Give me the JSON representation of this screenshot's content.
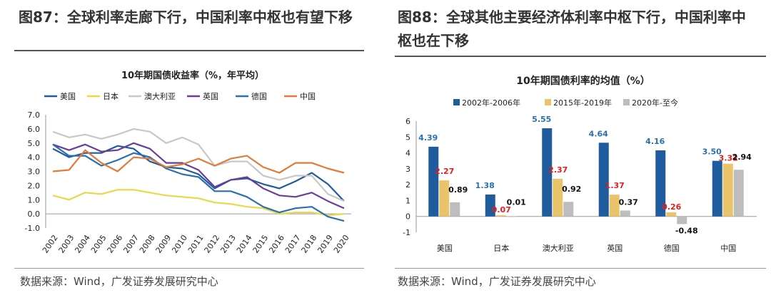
{
  "left": {
    "fig_title": "图87：全球利率走廊下行，中国利率中枢也有望下移",
    "source": "数据来源：Wind，广发证券发展研究中心"
  },
  "right": {
    "fig_title_line1": "图88：全球其他主要经济体利率中枢下行，中国利率中",
    "fig_title_line2": "枢也在下移",
    "source": "数据来源：Wind，广发证券发展研究中心"
  },
  "chart_data": [
    {
      "type": "line",
      "title": "10年期国债收益率（%，年平均）",
      "x": [
        "2002",
        "2003",
        "2004",
        "2005",
        "2006",
        "2007",
        "2008",
        "2009",
        "2010",
        "2011",
        "2012",
        "2013",
        "2014",
        "2015",
        "2016",
        "2017",
        "2018",
        "2019",
        "2020"
      ],
      "ylim": [
        -1.0,
        7.0
      ],
      "yticks": [
        "7.0",
        "6.0",
        "5.0",
        "4.0",
        "3.0",
        "2.0",
        "1.0",
        "0.0",
        "-1.0"
      ],
      "legend_position": "top",
      "series": [
        {
          "name": "美国",
          "color": "#1f5c9e",
          "values": [
            4.6,
            4.0,
            4.3,
            4.3,
            4.8,
            4.6,
            3.7,
            3.3,
            3.2,
            2.8,
            1.8,
            2.4,
            2.5,
            2.1,
            1.8,
            2.3,
            2.9,
            2.1,
            0.9
          ]
        },
        {
          "name": "日本",
          "color": "#e8d84a",
          "values": [
            1.3,
            1.0,
            1.5,
            1.4,
            1.7,
            1.7,
            1.5,
            1.3,
            1.2,
            1.1,
            0.8,
            0.7,
            0.5,
            0.4,
            0.0,
            0.1,
            0.1,
            -0.1,
            0.0
          ]
        },
        {
          "name": "澳大利亚",
          "color": "#c8c8c8",
          "values": [
            5.8,
            5.4,
            5.6,
            5.3,
            5.6,
            6.0,
            5.8,
            5.0,
            5.4,
            4.9,
            3.4,
            3.7,
            3.7,
            2.7,
            2.4,
            2.7,
            2.7,
            1.4,
            0.9
          ]
        },
        {
          "name": "英国",
          "color": "#6a3d9a",
          "values": [
            4.9,
            4.5,
            4.9,
            4.4,
            4.5,
            5.0,
            4.6,
            3.6,
            3.6,
            3.1,
            1.9,
            2.4,
            2.6,
            1.8,
            1.3,
            1.2,
            1.5,
            0.9,
            0.4
          ]
        },
        {
          "name": "德国",
          "color": "#2a6fb0",
          "values": [
            4.9,
            4.1,
            4.1,
            3.4,
            3.8,
            4.3,
            4.0,
            3.2,
            2.8,
            2.6,
            1.6,
            1.6,
            1.2,
            0.5,
            0.1,
            0.4,
            0.5,
            -0.2,
            -0.5
          ]
        },
        {
          "name": "中国",
          "color": "#e07b39",
          "values": [
            3.0,
            3.1,
            4.5,
            3.6,
            3.0,
            4.0,
            3.9,
            3.3,
            3.5,
            3.9,
            3.4,
            3.9,
            4.1,
            3.3,
            2.9,
            3.6,
            3.6,
            3.2,
            2.9
          ]
        }
      ]
    },
    {
      "type": "bar",
      "title": "10年期国债利率的均值（%）",
      "categories": [
        "美国",
        "日本",
        "澳大利亚",
        "英国",
        "德国",
        "中国"
      ],
      "ylim": [
        -1,
        6
      ],
      "yticks": [
        "6",
        "5",
        "4",
        "3",
        "2",
        "1",
        "0",
        "-1"
      ],
      "legend_position": "top",
      "series": [
        {
          "name": "2002年-2006年",
          "color": "#1f5c9e",
          "label_color": "#2a6fb0",
          "values": [
            4.39,
            1.38,
            5.55,
            4.64,
            4.16,
            3.5
          ],
          "labels": [
            "4.39",
            "1.38",
            "5.55",
            "4.64",
            "4.16",
            "3.50"
          ]
        },
        {
          "name": "2015年-2019年",
          "color": "#e9c46a",
          "label_color": "#e02020",
          "values": [
            2.27,
            0.07,
            2.37,
            1.37,
            0.26,
            3.32
          ],
          "labels": [
            "2.27",
            "0.07",
            "2.37",
            "1.37",
            "0.26",
            "3.32"
          ]
        },
        {
          "name": "2020年-至今",
          "color": "#bdbdbd",
          "label_color": "#111111",
          "values": [
            0.89,
            0.01,
            0.92,
            0.37,
            -0.48,
            2.94
          ],
          "labels": [
            "0.89",
            "0.01",
            "0.92",
            "0.37",
            "-0.48",
            "2.94"
          ]
        }
      ]
    }
  ]
}
